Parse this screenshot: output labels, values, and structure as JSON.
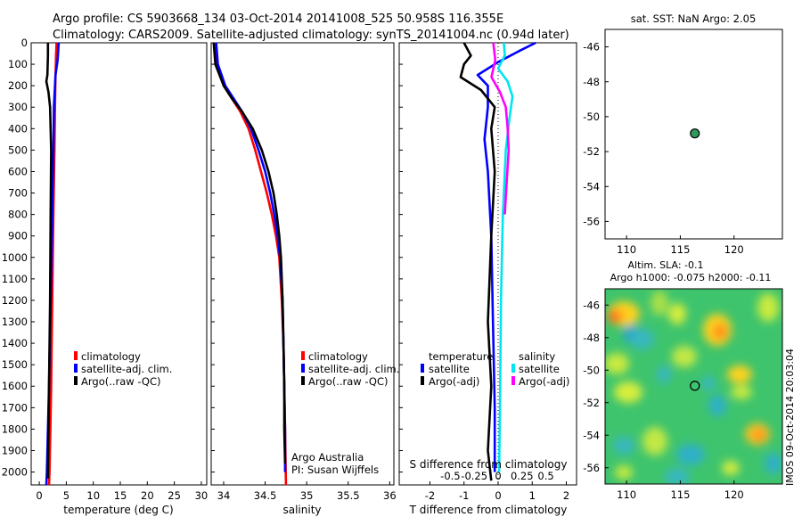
{
  "header": {
    "line1": "Argo profile: CS 5903668_134 03-Oct-2014 20141008_525 50.958S 116.355E",
    "line2": "Climatology: CARS2009. Satellite-adjusted climatology: synTS_20141004.nc (0.94d later)"
  },
  "colors": {
    "climatology": "#ff0000",
    "satellite": "#0000ff",
    "argo": "#000000",
    "sal_satellite": "#00e5ee",
    "sal_argo": "#ff00ff",
    "marker": "#2e9a5e"
  },
  "depth_axis": {
    "ticks": [
      "0",
      "100",
      "200",
      "300",
      "400",
      "500",
      "600",
      "700",
      "800",
      "900",
      "1000",
      "1100",
      "1200",
      "1300",
      "1400",
      "1500",
      "1600",
      "1700",
      "1800",
      "1900",
      "2000"
    ]
  },
  "chart_data": [
    {
      "type": "line",
      "name": "temperature-profile",
      "xlabel": "temperature (deg C)",
      "ylabel": "depth",
      "xlim": [
        -1.5,
        31
      ],
      "ylim": [
        0,
        2060
      ],
      "xticks": [
        "0",
        "5",
        "10",
        "15",
        "20",
        "25",
        "30"
      ],
      "xtick_values": [
        0,
        5,
        10,
        15,
        20,
        25,
        30
      ],
      "legend": [
        "climatology",
        "satellite-adj. clim.",
        "Argo(..raw -QC)"
      ],
      "series": [
        {
          "name": "climatology",
          "color": "#ff0000",
          "points": [
            [
              3.2,
              0
            ],
            [
              3.1,
              60
            ],
            [
              3.0,
              150
            ],
            [
              2.9,
              300
            ],
            [
              2.8,
              500
            ],
            [
              2.6,
              800
            ],
            [
              2.4,
              1200
            ],
            [
              2.2,
              1600
            ],
            [
              1.9,
              2000
            ],
            [
              1.8,
              2060
            ]
          ]
        },
        {
          "name": "satellite-adj. clim.",
          "color": "#0000ff",
          "points": [
            [
              3.6,
              0
            ],
            [
              3.4,
              80
            ],
            [
              3.0,
              150
            ],
            [
              2.7,
              300
            ],
            [
              2.6,
              500
            ],
            [
              2.4,
              800
            ],
            [
              2.1,
              1200
            ],
            [
              1.8,
              1600
            ],
            [
              1.4,
              2000
            ],
            [
              1.3,
              2060
            ]
          ]
        },
        {
          "name": "Argo(..raw -QC)",
          "color": "#000000",
          "points": [
            [
              1.6,
              0
            ],
            [
              1.6,
              60
            ],
            [
              1.5,
              150
            ],
            [
              1.3,
              180
            ],
            [
              1.7,
              230
            ],
            [
              2.0,
              300
            ],
            [
              2.2,
              500
            ],
            [
              2.1,
              800
            ],
            [
              2.0,
              1200
            ],
            [
              1.8,
              1600
            ],
            [
              1.6,
              2000
            ],
            [
              1.6,
              2030
            ]
          ]
        }
      ]
    },
    {
      "type": "line",
      "name": "salinity-profile",
      "xlabel": "salinity",
      "xlim": [
        33.85,
        36.05
      ],
      "ylim": [
        0,
        2060
      ],
      "xticks": [
        "34",
        "34.5",
        "35",
        "35.5",
        "36"
      ],
      "xtick_values": [
        34,
        34.5,
        35,
        35.5,
        36
      ],
      "legend": [
        "climatology",
        "satellite-adj. clim.",
        "Argo(..raw -QC)"
      ],
      "annotations": [
        "Argo Australia",
        "PI: Susan Wijffels"
      ],
      "series": [
        {
          "name": "climatology",
          "color": "#ff0000",
          "points": [
            [
              33.9,
              0
            ],
            [
              33.92,
              100
            ],
            [
              34.0,
              200
            ],
            [
              34.1,
              260
            ],
            [
              34.2,
              320
            ],
            [
              34.3,
              400
            ],
            [
              34.38,
              500
            ],
            [
              34.45,
              600
            ],
            [
              34.52,
              700
            ],
            [
              34.58,
              800
            ],
            [
              34.63,
              900
            ],
            [
              34.67,
              1000
            ],
            [
              34.7,
              1200
            ],
            [
              34.72,
              1400
            ],
            [
              34.73,
              1600
            ],
            [
              34.74,
              1800
            ],
            [
              34.75,
              2060
            ]
          ]
        },
        {
          "name": "satellite-adj. clim.",
          "color": "#0000ff",
          "points": [
            [
              33.91,
              0
            ],
            [
              33.93,
              100
            ],
            [
              34.02,
              200
            ],
            [
              34.12,
              260
            ],
            [
              34.22,
              320
            ],
            [
              34.33,
              400
            ],
            [
              34.42,
              500
            ],
            [
              34.5,
              600
            ],
            [
              34.56,
              700
            ],
            [
              34.61,
              800
            ],
            [
              34.65,
              900
            ],
            [
              34.68,
              1000
            ],
            [
              34.71,
              1200
            ],
            [
              34.72,
              1400
            ],
            [
              34.73,
              1600
            ],
            [
              34.74,
              1800
            ],
            [
              34.74,
              2000
            ]
          ]
        },
        {
          "name": "Argo(..raw -QC)",
          "color": "#000000",
          "points": [
            [
              33.88,
              0
            ],
            [
              33.9,
              100
            ],
            [
              34.0,
              200
            ],
            [
              34.1,
              260
            ],
            [
              34.22,
              320
            ],
            [
              34.35,
              400
            ],
            [
              34.46,
              500
            ],
            [
              34.54,
              600
            ],
            [
              34.6,
              700
            ],
            [
              34.64,
              800
            ],
            [
              34.67,
              900
            ],
            [
              34.69,
              1000
            ],
            [
              34.71,
              1200
            ],
            [
              34.72,
              1400
            ],
            [
              34.73,
              1600
            ],
            [
              34.73,
              1800
            ],
            [
              34.74,
              1960
            ]
          ]
        }
      ]
    },
    {
      "type": "line",
      "name": "difference-profile",
      "xlabel": "T difference from climatology",
      "xlabel_top": "S difference from climatology",
      "xlim": [
        -2.9,
        2.3
      ],
      "ylim": [
        0,
        2060
      ],
      "xticks": [
        "-2",
        "-1",
        "0",
        "1",
        "2"
      ],
      "xtick_values": [
        -2,
        -1,
        0,
        1,
        2
      ],
      "s_ticks": [
        "-0.5",
        "-0.25",
        "0",
        "0.25",
        "0.5"
      ],
      "s_tick_values": [
        -0.5,
        -0.25,
        0,
        0.25,
        0.5
      ],
      "legend_titles": [
        "temperature",
        "salinity"
      ],
      "legend": [
        "satellite",
        "Argo(-adj)",
        "satellite",
        "Argo(-adj)"
      ],
      "series": [
        {
          "name": "T satellite",
          "color": "#0000ff",
          "points": [
            [
              1.1,
              0
            ],
            [
              0.6,
              40
            ],
            [
              0.0,
              90
            ],
            [
              -0.6,
              150
            ],
            [
              -0.3,
              200
            ],
            [
              -0.3,
              300
            ],
            [
              -0.4,
              450
            ],
            [
              -0.3,
              600
            ],
            [
              -0.2,
              900
            ],
            [
              -0.15,
              1300
            ],
            [
              -0.1,
              1700
            ],
            [
              -0.1,
              2000
            ]
          ]
        },
        {
          "name": "T Argo(-adj)",
          "color": "#000000",
          "points": [
            [
              -1.0,
              0
            ],
            [
              -0.8,
              60
            ],
            [
              -1.0,
              100
            ],
            [
              -1.1,
              160
            ],
            [
              -0.5,
              220
            ],
            [
              -0.1,
              300
            ],
            [
              -0.2,
              400
            ],
            [
              -0.1,
              600
            ],
            [
              -0.2,
              900
            ],
            [
              -0.3,
              1300
            ],
            [
              -0.2,
              1600
            ],
            [
              -0.3,
              1900
            ],
            [
              -0.2,
              2040
            ]
          ]
        },
        {
          "name": "S satellite",
          "color": "#00e5ee",
          "points": [
            [
              0.06,
              0
            ],
            [
              0.07,
              60
            ],
            [
              0.0,
              120
            ],
            [
              0.1,
              180
            ],
            [
              0.15,
              250
            ],
            [
              0.12,
              350
            ],
            [
              0.08,
              500
            ],
            [
              0.05,
              800
            ],
            [
              0.03,
              1200
            ],
            [
              0.02,
              1700
            ],
            [
              0.01,
              2000
            ]
          ]
        },
        {
          "name": "S Argo(-adj)",
          "color": "#ff00ff",
          "points": [
            [
              -0.05,
              0
            ],
            [
              -0.03,
              80
            ],
            [
              -0.07,
              160
            ],
            [
              0.02,
              230
            ],
            [
              0.08,
              300
            ],
            [
              0.1,
              400
            ],
            [
              0.11,
              500
            ],
            [
              0.09,
              650
            ],
            [
              0.07,
              800
            ]
          ]
        }
      ]
    },
    {
      "type": "scatter",
      "name": "position-map",
      "title": "sat. SST: NaN Argo: 2.05",
      "xlim": [
        108,
        124.5
      ],
      "ylim": [
        -57,
        -45
      ],
      "xticks": [
        "110",
        "115",
        "120"
      ],
      "xtick_values": [
        110,
        115,
        120
      ],
      "yticks": [
        "-46",
        "-48",
        "-50",
        "-52",
        "-54",
        "-56"
      ],
      "ytick_values": [
        -46,
        -48,
        -50,
        -52,
        -54,
        -56
      ],
      "points": [
        [
          116.355,
          -50.958
        ]
      ]
    },
    {
      "type": "heatmap",
      "name": "sla-map",
      "title_line1": "Altim. SLA: -0.1",
      "title_line2": "Argo h1000: -0.075 h2000: -0.11",
      "side_label": "IMOS 09-Oct-2014 20:03:04",
      "xlim": [
        108,
        124.5
      ],
      "ylim": [
        -57,
        -45
      ],
      "xticks": [
        "110",
        "115",
        "120"
      ],
      "xtick_values": [
        110,
        115,
        120
      ],
      "yticks": [
        "-46",
        "-48",
        "-50",
        "-52",
        "-54",
        "-56"
      ],
      "ytick_values": [
        -46,
        -48,
        -50,
        -52,
        -54,
        -56
      ],
      "points": [
        [
          116.355,
          -50.958
        ]
      ]
    }
  ]
}
